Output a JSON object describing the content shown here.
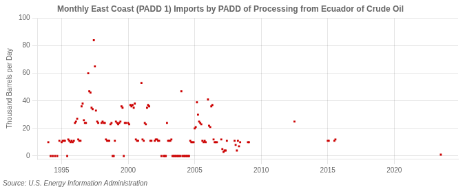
{
  "chart_data": {
    "type": "scatter",
    "title": "Monthly East Coast (PADD 1) Imports by PADD of Processing from Ecuador of Crude Oil",
    "ylabel": "Thousand Barrels per Day",
    "annotations": [
      "Source: U.S. Energy Information Administration"
    ],
    "color": "#cc0000",
    "marker": "square",
    "grid": true,
    "xlim": [
      1993.2,
      2024.8
    ],
    "ylim": [
      -2,
      100
    ],
    "xticks": [
      1995,
      2000,
      2005,
      2010,
      2015,
      2020
    ],
    "yticks": [
      0,
      20,
      40,
      60,
      80,
      100
    ],
    "x": [
      1994.0,
      1994.17,
      1994.33,
      1994.5,
      1994.67,
      1994.83,
      1995.0,
      1995.08,
      1995.17,
      1995.25,
      1995.42,
      1995.5,
      1995.58,
      1995.67,
      1995.75,
      1995.83,
      1995.92,
      1996.0,
      1996.08,
      1996.17,
      1996.25,
      1996.33,
      1996.42,
      1996.5,
      1996.58,
      1996.67,
      1996.75,
      1996.83,
      1997.0,
      1997.08,
      1997.17,
      1997.25,
      1997.33,
      1997.42,
      1997.5,
      1997.58,
      1997.67,
      1997.75,
      1998.0,
      1998.08,
      1998.17,
      1998.25,
      1998.33,
      1998.42,
      1998.5,
      1998.58,
      1998.67,
      1998.75,
      1998.83,
      1998.92,
      1999.0,
      1999.08,
      1999.17,
      1999.25,
      1999.33,
      1999.42,
      1999.5,
      1999.58,
      1999.67,
      1999.75,
      1999.83,
      2000.0,
      2000.08,
      2000.17,
      2000.25,
      2000.33,
      2000.42,
      2000.5,
      2000.58,
      2000.67,
      2000.75,
      2001.0,
      2001.08,
      2001.17,
      2001.25,
      2001.33,
      2001.42,
      2001.5,
      2001.58,
      2001.67,
      2001.75,
      2002.0,
      2002.08,
      2002.17,
      2002.25,
      2002.33,
      2002.5,
      2002.67,
      2002.75,
      2002.83,
      2002.92,
      2003.0,
      2003.08,
      2003.17,
      2003.25,
      2003.33,
      2003.42,
      2003.5,
      2003.58,
      2003.67,
      2003.75,
      2003.83,
      2003.92,
      2004.0,
      2004.08,
      2004.17,
      2004.25,
      2004.33,
      2004.42,
      2004.5,
      2004.58,
      2004.67,
      2004.75,
      2004.83,
      2004.92,
      2005.0,
      2005.08,
      2005.17,
      2005.25,
      2005.33,
      2005.42,
      2005.5,
      2005.58,
      2005.67,
      2005.75,
      2005.83,
      2006.0,
      2006.08,
      2006.17,
      2006.25,
      2006.33,
      2006.42,
      2006.5,
      2006.58,
      2006.67,
      2007.0,
      2007.08,
      2007.17,
      2007.25,
      2007.33,
      2007.42,
      2008.0,
      2008.08,
      2008.17,
      2008.25,
      2008.33,
      2008.42,
      2009.0,
      2009.08,
      2012.5,
      2015.0,
      2015.08,
      2015.5,
      2015.58,
      2023.5
    ],
    "values": [
      10,
      0,
      0,
      0,
      0,
      11,
      10,
      11,
      11,
      11,
      0,
      12,
      11,
      10,
      11,
      10,
      11,
      24,
      25,
      27,
      12,
      11,
      11,
      36,
      38,
      26,
      24,
      24,
      60,
      47,
      46,
      35,
      34,
      84,
      65,
      33,
      25,
      24,
      24,
      25,
      24,
      24,
      12,
      11,
      11,
      11,
      23,
      24,
      0,
      0,
      11,
      25,
      24,
      23,
      24,
      25,
      36,
      35,
      0,
      24,
      24,
      24,
      23,
      37,
      36,
      37,
      35,
      38,
      12,
      11,
      11,
      53,
      12,
      11,
      24,
      23,
      35,
      37,
      36,
      11,
      11,
      11,
      12,
      12,
      11,
      11,
      0,
      0,
      0,
      0,
      24,
      11,
      11,
      11,
      12,
      0,
      0,
      0,
      0,
      0,
      0,
      0,
      0,
      47,
      0,
      0,
      0,
      0,
      0,
      0,
      0,
      11,
      10,
      10,
      10,
      20,
      21,
      39,
      30,
      25,
      24,
      23,
      11,
      10,
      11,
      10,
      41,
      22,
      21,
      36,
      37,
      12,
      10,
      10,
      10,
      12,
      5,
      3,
      4,
      4,
      11,
      11,
      8,
      4,
      11,
      7,
      10,
      10,
      10,
      25,
      11,
      11,
      11,
      12,
      1
    ]
  }
}
